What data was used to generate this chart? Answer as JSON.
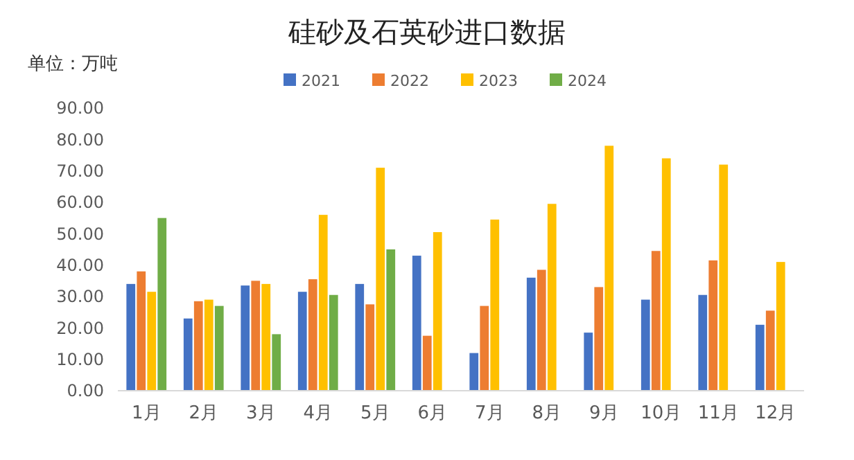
{
  "chart_data": {
    "type": "bar",
    "title": "硅砂及石英砂进口数据",
    "annotations": [
      "单位：万吨"
    ],
    "categories": [
      "1月",
      "2月",
      "3月",
      "4月",
      "5月",
      "6月",
      "7月",
      "8月",
      "9月",
      "10月",
      "11月",
      "12月"
    ],
    "series": [
      {
        "name": "2021",
        "color": "#4472c4",
        "values": [
          34,
          23,
          33.5,
          31.5,
          34,
          43,
          12,
          36,
          18.5,
          29,
          30.5,
          21
        ]
      },
      {
        "name": "2022",
        "color": "#ed7d31",
        "values": [
          38,
          28.5,
          35,
          35.5,
          27.5,
          17.5,
          27,
          38.5,
          33,
          44.5,
          41.5,
          25.5
        ]
      },
      {
        "name": "2023",
        "color": "#ffc000",
        "values": [
          31.5,
          29,
          34,
          56,
          71,
          50.5,
          54.5,
          59.5,
          78,
          74,
          72,
          41
        ]
      },
      {
        "name": "2024",
        "color": "#70ad47",
        "values": [
          55,
          27,
          18,
          30.5,
          45,
          null,
          null,
          null,
          null,
          null,
          null,
          null
        ]
      }
    ],
    "ylim": [
      0,
      90
    ],
    "yticks": [
      {
        "value": 0,
        "label": "0.00"
      },
      {
        "value": 10,
        "label": "10.00"
      },
      {
        "value": 20,
        "label": "20.00"
      },
      {
        "value": 30,
        "label": "30.00"
      },
      {
        "value": 40,
        "label": "40.00"
      },
      {
        "value": 50,
        "label": "50.00"
      },
      {
        "value": 60,
        "label": "60.00"
      },
      {
        "value": 70,
        "label": "70.00"
      },
      {
        "value": 80,
        "label": "80.00"
      },
      {
        "value": 90,
        "label": "90.00"
      }
    ],
    "grid": false,
    "legend": "top"
  }
}
